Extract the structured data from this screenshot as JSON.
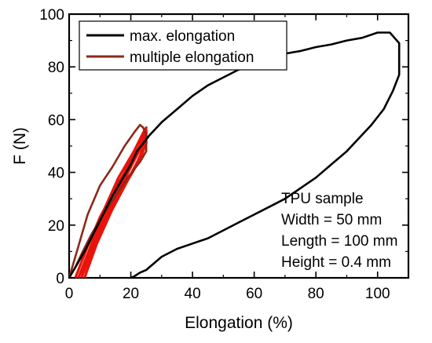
{
  "chart_data": {
    "type": "line",
    "xlabel": "Elongation (%)",
    "ylabel": "F (N)",
    "xlim": [
      0,
      110
    ],
    "ylim": [
      0,
      100
    ],
    "xticks": [
      0,
      20,
      40,
      60,
      80,
      100
    ],
    "yticks": [
      0,
      20,
      40,
      60,
      80,
      100
    ],
    "xtick_labels": [
      "0",
      "20",
      "40",
      "60",
      "80",
      "100"
    ],
    "ytick_labels": [
      "0",
      "20",
      "40",
      "60",
      "80",
      "100"
    ],
    "grid": false,
    "legend_position": "top-left",
    "series": [
      {
        "name": "max. elongation",
        "color": "#000000",
        "x": [
          0,
          2,
          5,
          8,
          11,
          14,
          17,
          20,
          22,
          24,
          26,
          30,
          35,
          40,
          45,
          50,
          55,
          60,
          65,
          70,
          75,
          80,
          85,
          90,
          95,
          100,
          104,
          107,
          107,
          105,
          102,
          98,
          94,
          90,
          85,
          80,
          75,
          70,
          65,
          60,
          55,
          50,
          45,
          40,
          35,
          30,
          27,
          25,
          23,
          21,
          20
        ],
        "y": [
          0,
          4,
          10,
          17,
          24,
          31,
          37,
          43,
          48,
          51,
          54,
          59,
          64,
          69,
          73,
          76,
          79,
          81,
          83,
          85,
          86,
          87.5,
          88.5,
          90,
          91,
          93,
          93,
          89,
          77,
          71,
          64,
          58,
          53,
          48,
          43,
          38,
          34,
          30,
          27,
          24,
          21,
          18,
          15,
          13,
          11,
          8,
          5,
          3,
          2,
          0.5,
          0
        ]
      },
      {
        "name": "multiple elongation",
        "color": "#8b2a1a",
        "x": [
          0,
          3,
          6,
          10,
          14,
          18,
          21,
          23,
          24,
          25,
          25,
          23,
          19,
          15,
          11,
          7,
          4,
          2,
          0
        ],
        "y": [
          0,
          12,
          24,
          35,
          42,
          50,
          55,
          58,
          57,
          54,
          48,
          44,
          38,
          31,
          24,
          16,
          9,
          4,
          0
        ]
      }
    ],
    "cyclic_loops": {
      "color": "#e8140c",
      "loops": [
        {
          "x": [
            2,
            6,
            11,
            16,
            21,
            24,
            25,
            24,
            20,
            15,
            10,
            6,
            3,
            2
          ],
          "y": [
            0,
            12,
            25,
            38,
            48,
            55,
            57,
            52,
            44,
            34,
            23,
            12,
            3,
            0
          ]
        },
        {
          "x": [
            3,
            8,
            13,
            18,
            22,
            25,
            25,
            23,
            19,
            14,
            9,
            5,
            3
          ],
          "y": [
            0,
            15,
            28,
            40,
            50,
            56,
            51,
            45,
            37,
            26,
            15,
            5,
            0
          ]
        },
        {
          "x": [
            4,
            9,
            14,
            19,
            23,
            25,
            24,
            21,
            16,
            11,
            7,
            4
          ],
          "y": [
            0,
            16,
            29,
            41,
            50,
            55,
            49,
            41,
            31,
            20,
            9,
            0
          ]
        },
        {
          "x": [
            5,
            10,
            15,
            20,
            24,
            25,
            23,
            19,
            14,
            9,
            5
          ],
          "y": [
            0,
            17,
            30,
            42,
            51,
            53,
            46,
            37,
            26,
            13,
            0
          ]
        }
      ]
    },
    "annotation": {
      "lines": [
        "TPU sample",
        "Width = 50 mm",
        "Length = 100 mm",
        "Height = 0.4 mm"
      ],
      "position": "bottom-right"
    }
  }
}
